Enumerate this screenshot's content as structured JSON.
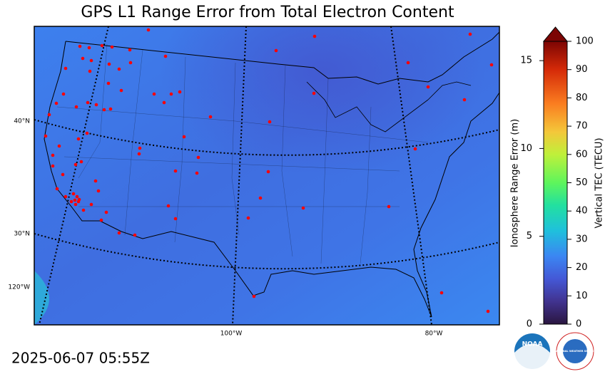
{
  "title": "GPS L1 Range Error from Total Electron Content",
  "timestamp": "2025-06-07 05:55Z",
  "map_labels": {
    "lat_40": "40°N",
    "lat_30": "30°N",
    "lon_120": "120°W",
    "lon_100": "100°W",
    "lon_80": "80°W"
  },
  "colorbar": {
    "range_label": "Ionosphere Range Error (m)",
    "range_lim": [
      0,
      16.1
    ],
    "range_ticks": [
      0,
      5,
      10,
      15
    ],
    "tec_label": "Vertical TEC (TECU)",
    "tec_lim": [
      0,
      100
    ],
    "tec_ticks": [
      0,
      10,
      20,
      30,
      40,
      50,
      60,
      70,
      80,
      90,
      100
    ]
  },
  "logos": {
    "noaa": "NOAA",
    "nws": "NATIONAL WEATHER SERVICE"
  }
}
